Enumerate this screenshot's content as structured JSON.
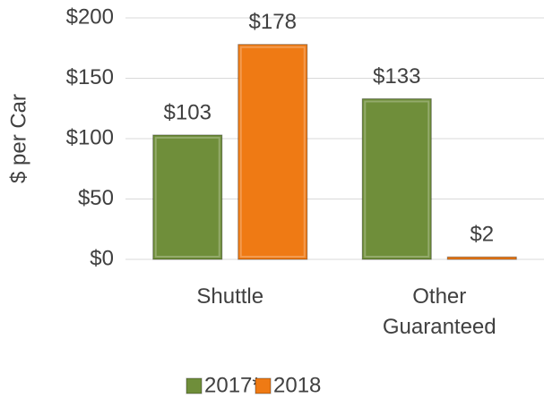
{
  "chart_data": {
    "type": "bar",
    "y_label": "$ per Car",
    "categories": [
      "Shuttle",
      "Other Guaranteed"
    ],
    "series": [
      {
        "name": "2017*",
        "color": "#6f8e3a",
        "values": [
          103,
          133
        ],
        "value_labels": [
          "$103",
          "$133"
        ]
      },
      {
        "name": "2018",
        "color": "#ef7a14",
        "values": [
          178,
          2
        ],
        "value_labels": [
          "$178",
          "$2"
        ]
      }
    ],
    "ylim": [
      0,
      200
    ],
    "yticks": [
      {
        "value": 0,
        "label": "$0"
      },
      {
        "value": 50,
        "label": "$50"
      },
      {
        "value": 100,
        "label": "$100"
      },
      {
        "value": 150,
        "label": "$150"
      },
      {
        "value": 200,
        "label": "$200"
      }
    ],
    "grid": true,
    "legend": "bottom"
  }
}
